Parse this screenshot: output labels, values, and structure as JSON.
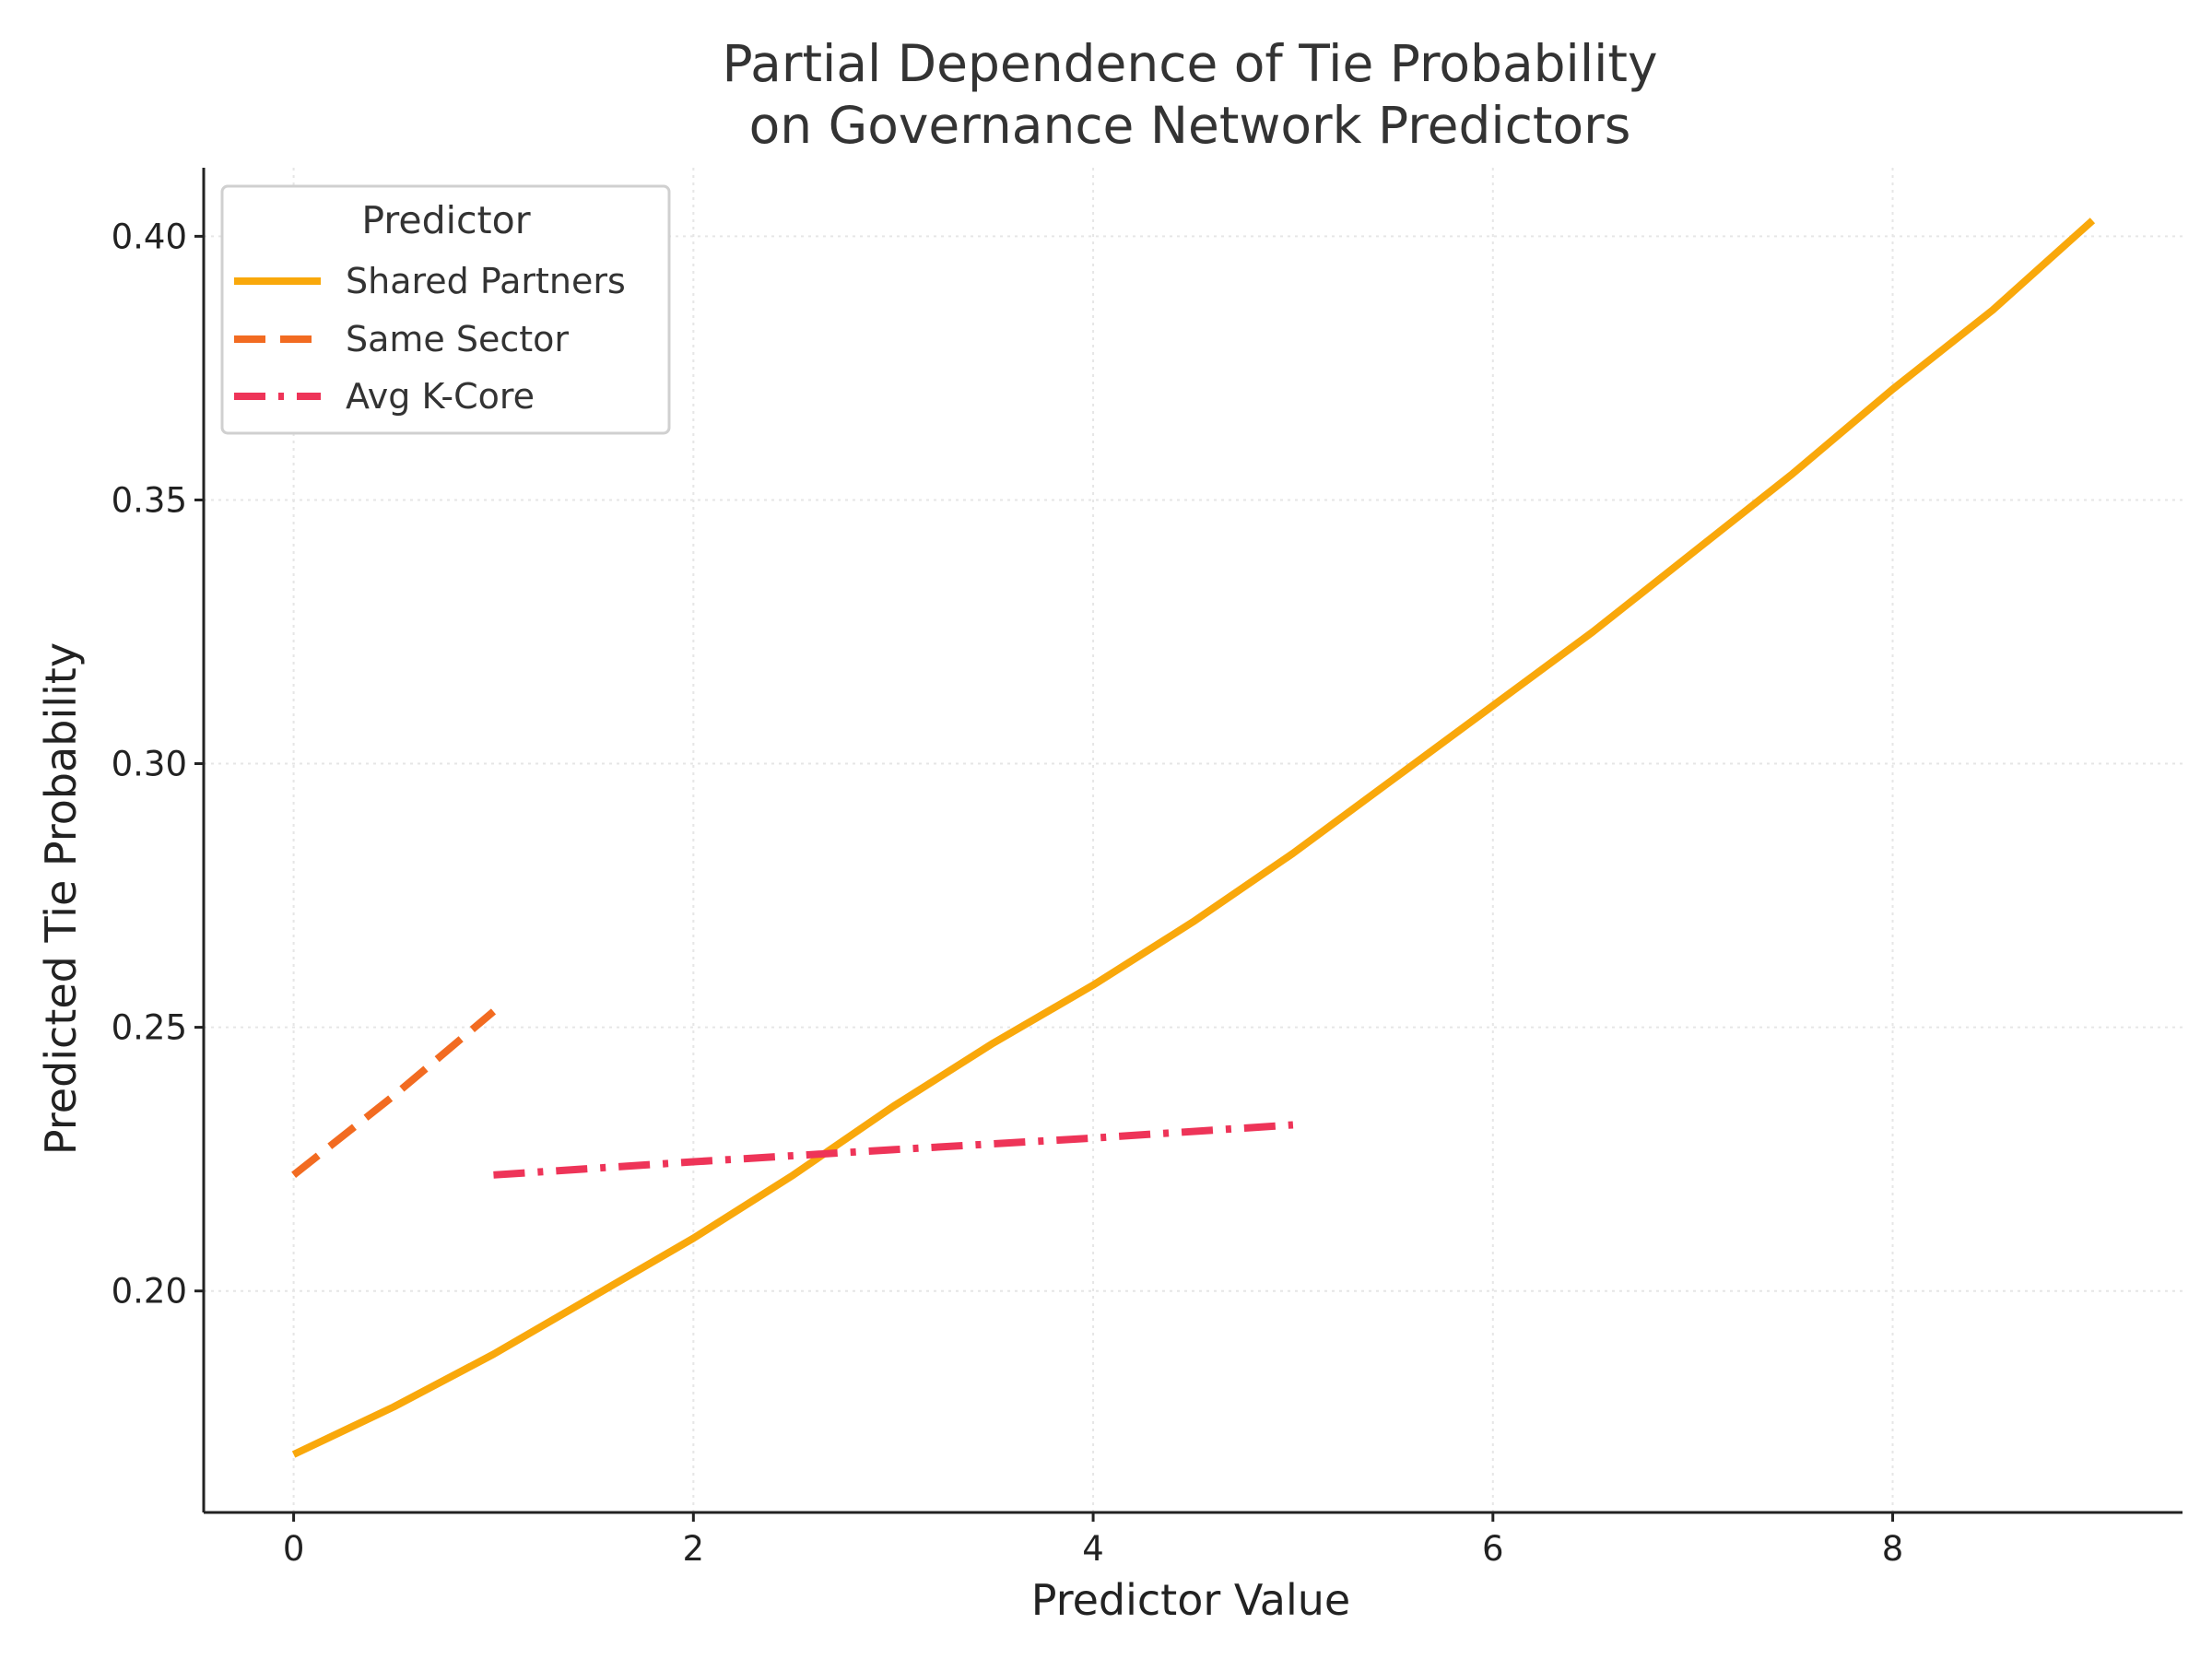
{
  "chart_data": {
    "type": "line",
    "title_lines": [
      "Partial Dependence of Tie Probability",
      "on Governance Network Predictors"
    ],
    "xlabel": "Predictor Value",
    "ylabel": "Predicted Tie Probability",
    "xlim": [
      -0.45,
      9.45
    ],
    "ylim": [
      0.158,
      0.413
    ],
    "xticks": [
      0,
      2,
      4,
      6,
      8
    ],
    "xtick_labels": [
      "0",
      "2",
      "4",
      "6",
      "8"
    ],
    "yticks": [
      0.2,
      0.25,
      0.3,
      0.35,
      0.4
    ],
    "ytick_labels": [
      "0.20",
      "0.25",
      "0.30",
      "0.35",
      "0.40"
    ],
    "grid": true,
    "legend": {
      "title": "Predictor",
      "position": "top-left"
    },
    "series": [
      {
        "name": "Shared Partners",
        "color": "#F9A80B",
        "style": "solid",
        "x": [
          0,
          0.5,
          1,
          1.5,
          2,
          2.5,
          3,
          3.5,
          4,
          4.5,
          5,
          5.5,
          6,
          6.5,
          7,
          7.5,
          8,
          8.5,
          9
        ],
        "y": [
          0.169,
          0.178,
          0.188,
          0.199,
          0.21,
          0.222,
          0.235,
          0.247,
          0.258,
          0.27,
          0.283,
          0.297,
          0.311,
          0.325,
          0.34,
          0.355,
          0.371,
          0.386,
          0.403
        ]
      },
      {
        "name": "Same Sector",
        "color": "#F26B21",
        "style": "dashed",
        "x": [
          0,
          0.5,
          1
        ],
        "y": [
          0.222,
          0.237,
          0.253
        ]
      },
      {
        "name": "Avg K-Core",
        "color": "#EE3458",
        "style": "dashdot",
        "x": [
          1,
          2,
          3,
          4,
          5
        ],
        "y": [
          0.222,
          0.2245,
          0.2268,
          0.229,
          0.2315
        ]
      }
    ]
  }
}
